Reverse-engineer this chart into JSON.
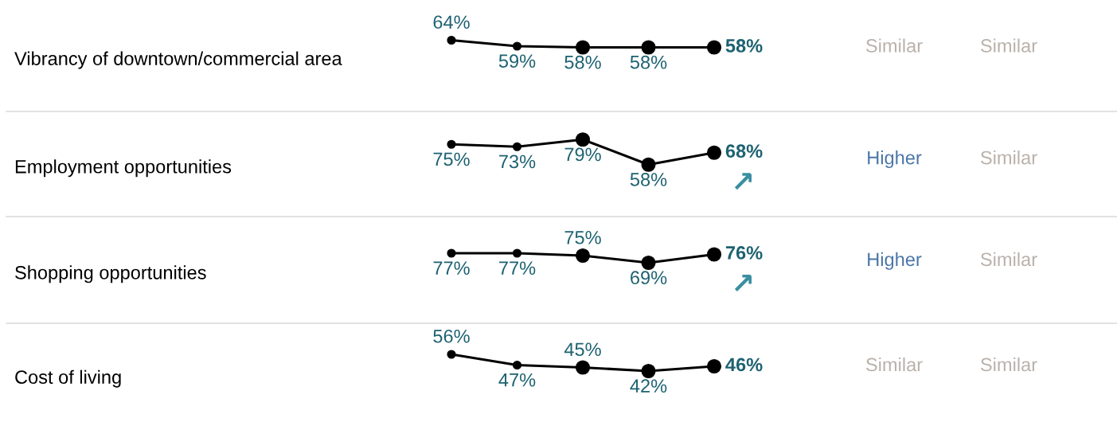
{
  "chart_data": [
    {
      "type": "line",
      "ylabel": "Vibrancy of downtown/commercial area",
      "categories": [
        null,
        null,
        null,
        null,
        null
      ],
      "values": [
        64,
        59,
        58,
        58,
        58
      ],
      "value_labels": [
        "64%",
        "59%",
        "58%",
        "58%",
        "58%"
      ],
      "data_labels": true,
      "color": "#000000",
      "marker": "circle",
      "annotations": [
        "Similar",
        "Similar"
      ]
    },
    {
      "type": "line",
      "ylabel": "Employment opportunities",
      "categories": [
        null,
        null,
        null,
        null,
        null
      ],
      "values": [
        75,
        73,
        79,
        58,
        68
      ],
      "value_labels": [
        "75%",
        "73%",
        "79%",
        "58%",
        "68%"
      ],
      "data_labels": true,
      "color": "#000000",
      "marker": "circle",
      "annotations": [
        "↗",
        "Higher",
        "Similar"
      ]
    },
    {
      "type": "line",
      "ylabel": "Shopping opportunities",
      "categories": [
        null,
        null,
        null,
        null,
        null
      ],
      "values": [
        77,
        77,
        75,
        69,
        76
      ],
      "value_labels": [
        "77%",
        "77%",
        "75%",
        "69%",
        "76%"
      ],
      "data_labels": true,
      "color": "#000000",
      "marker": "circle",
      "annotations": [
        "↗",
        "Higher",
        "Similar"
      ]
    },
    {
      "type": "line",
      "ylabel": "Cost of living",
      "categories": [
        null,
        null,
        null,
        null,
        null
      ],
      "values": [
        56,
        47,
        45,
        42,
        46
      ],
      "value_labels": [
        "56%",
        "47%",
        "45%",
        "42%",
        "46%"
      ],
      "data_labels": true,
      "color": "#000000",
      "marker": "circle",
      "annotations": [
        "Similar",
        "Similar"
      ]
    }
  ]
}
